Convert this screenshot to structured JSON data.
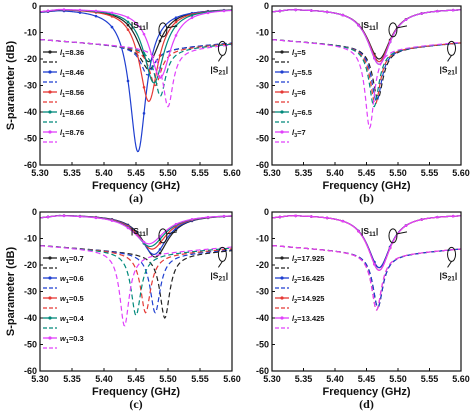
{
  "ylabel": "S-parameter (dB)",
  "chart_data": [
    {
      "panel": "(a)",
      "type": "line",
      "xlabel": "Frequency (GHz)",
      "ylabel": "S-parameter (dB)",
      "xlim": [
        5.3,
        5.6
      ],
      "ylim": [
        -60,
        0
      ],
      "xticks": [
        "5.30",
        "5.35",
        "5.40",
        "5.45",
        "5.50",
        "5.55",
        "5.60"
      ],
      "yticks": [
        "0",
        "-10",
        "-20",
        "-30",
        "-40",
        "-50",
        "-60"
      ],
      "annotations": {
        "s11": "|S11|",
        "s21": "|S21|"
      },
      "series": [
        {
          "name": "l1=8.36",
          "color": "#222222",
          "s11": {
            "f0": 5.47,
            "depth": -21
          },
          "s21": {
            "f0": 5.47,
            "depth": -24
          }
        },
        {
          "name": "l1=8.46",
          "color": "#1f3fd0",
          "s11": {
            "f0": 5.453,
            "depth": -55
          },
          "s21": {
            "f0": 5.468,
            "depth": -26
          }
        },
        {
          "name": "l1=8.56",
          "color": "#e53935",
          "s11": {
            "f0": 5.47,
            "depth": -36
          },
          "s21": {
            "f0": 5.48,
            "depth": -30
          }
        },
        {
          "name": "l1=8.66",
          "color": "#00897b",
          "s11": {
            "f0": 5.478,
            "depth": -29
          },
          "s21": {
            "f0": 5.488,
            "depth": -34
          }
        },
        {
          "name": "l1=8.76",
          "color": "#e040fb",
          "s11": {
            "f0": 5.488,
            "depth": -27
          },
          "s21": {
            "f0": 5.5,
            "depth": -38
          }
        }
      ]
    },
    {
      "panel": "(b)",
      "type": "line",
      "xlabel": "Frequency (GHz)",
      "ylabel": "",
      "xlim": [
        5.3,
        5.6
      ],
      "ylim": [
        -60,
        0
      ],
      "xticks": [
        "5.30",
        "5.35",
        "5.40",
        "5.45",
        "5.50",
        "5.55",
        "5.60"
      ],
      "yticks": [
        "0",
        "-10",
        "-20",
        "-30",
        "-40",
        "-50",
        "-60"
      ],
      "annotations": {
        "s11": "|S11|",
        "s21": "|S21|"
      },
      "series": [
        {
          "name": "l3=5",
          "color": "#222222",
          "s11": {
            "f0": 5.47,
            "depth": -20
          },
          "s21": {
            "f0": 5.468,
            "depth": -35
          }
        },
        {
          "name": "l3=5.5",
          "color": "#1f3fd0",
          "s11": {
            "f0": 5.47,
            "depth": -21
          },
          "s21": {
            "f0": 5.466,
            "depth": -36
          }
        },
        {
          "name": "l3=6",
          "color": "#e53935",
          "s11": {
            "f0": 5.47,
            "depth": -21
          },
          "s21": {
            "f0": 5.464,
            "depth": -37
          }
        },
        {
          "name": "l3=6.5",
          "color": "#00897b",
          "s11": {
            "f0": 5.47,
            "depth": -22
          },
          "s21": {
            "f0": 5.462,
            "depth": -38
          }
        },
        {
          "name": "l3=7",
          "color": "#e040fb",
          "s11": {
            "f0": 5.47,
            "depth": -22
          },
          "s21": {
            "f0": 5.455,
            "depth": -46
          }
        }
      ]
    },
    {
      "panel": "(c)",
      "type": "line",
      "xlabel": "Frequency (GHz)",
      "ylabel": "S-parameter (dB)",
      "xlim": [
        5.3,
        5.6
      ],
      "ylim": [
        -60,
        0
      ],
      "xticks": [
        "5.30",
        "5.35",
        "5.40",
        "5.45",
        "5.50",
        "5.55",
        "5.60"
      ],
      "yticks": [
        "0",
        "-10",
        "-20",
        "-30",
        "-40",
        "-50",
        "-60"
      ],
      "annotations": {
        "s11": "|S11|",
        "s21": "|S21|"
      },
      "series": [
        {
          "name": "w1=0.7",
          "color": "#222222",
          "s11": {
            "f0": 5.48,
            "depth": -17
          },
          "s21": {
            "f0": 5.495,
            "depth": -40
          }
        },
        {
          "name": "w1=0.6",
          "color": "#1f3fd0",
          "s11": {
            "f0": 5.478,
            "depth": -16
          },
          "s21": {
            "f0": 5.48,
            "depth": -38
          }
        },
        {
          "name": "w1=0.5",
          "color": "#e53935",
          "s11": {
            "f0": 5.475,
            "depth": -14
          },
          "s21": {
            "f0": 5.465,
            "depth": -38
          }
        },
        {
          "name": "w1=0.4",
          "color": "#00897b",
          "s11": {
            "f0": 5.472,
            "depth": -13
          },
          "s21": {
            "f0": 5.45,
            "depth": -39
          }
        },
        {
          "name": "w1=0.3",
          "color": "#e040fb",
          "s11": {
            "f0": 5.47,
            "depth": -12
          },
          "s21": {
            "f0": 5.432,
            "depth": -43
          }
        }
      ]
    },
    {
      "panel": "(d)",
      "type": "line",
      "xlabel": "Frequency (GHz)",
      "ylabel": "",
      "xlim": [
        5.3,
        5.6
      ],
      "ylim": [
        -60,
        0
      ],
      "xticks": [
        "5.30",
        "5.35",
        "5.40",
        "5.45",
        "5.50",
        "5.55",
        "5.60"
      ],
      "yticks": [
        "0",
        "-10",
        "-20",
        "-30",
        "-40",
        "-50",
        "-60"
      ],
      "annotations": {
        "s11": "|S11|",
        "s21": "|S21|"
      },
      "series": [
        {
          "name": "l2=17.925",
          "color": "#222222",
          "s11": {
            "f0": 5.47,
            "depth": -21
          },
          "s21": {
            "f0": 5.468,
            "depth": -36
          }
        },
        {
          "name": "l2=16.425",
          "color": "#1f3fd0",
          "s11": {
            "f0": 5.47,
            "depth": -21
          },
          "s21": {
            "f0": 5.468,
            "depth": -36
          }
        },
        {
          "name": "l2=14.925",
          "color": "#e53935",
          "s11": {
            "f0": 5.47,
            "depth": -22
          },
          "s21": {
            "f0": 5.466,
            "depth": -37
          }
        },
        {
          "name": "l2=13.425",
          "color": "#e040fb",
          "s11": {
            "f0": 5.47,
            "depth": -22
          },
          "s21": {
            "f0": 5.466,
            "depth": -37
          }
        }
      ]
    }
  ]
}
